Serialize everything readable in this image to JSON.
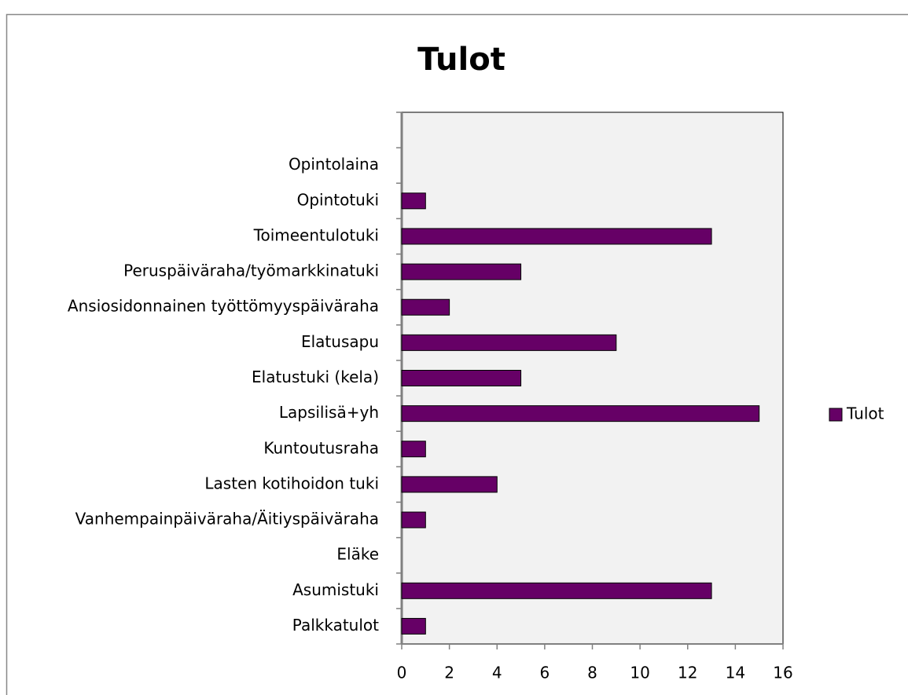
{
  "chart_data": {
    "type": "bar",
    "orientation": "horizontal",
    "title": "Tulot",
    "categories": [
      "Palkkatulot",
      "Asumistuki",
      "Eläke",
      "Vanhempainpäiväraha/Äitiyspäiväraha",
      "Lasten kotihoidon tuki",
      "Kuntoutusraha",
      "Lapsilisä+yh",
      "Elatustuki (kela)",
      "Elatusapu",
      "Ansiosidonnainen työttömyyspäiväraha",
      "Peruspäiväraha/työmarkkinatuki",
      "Toimeentulotuki",
      "Opintotuki",
      "Opintolaina",
      null
    ],
    "series": [
      {
        "name": "Tulot",
        "color": "#660066",
        "values": [
          1,
          13,
          0,
          1,
          4,
          1,
          15,
          5,
          9,
          2,
          5,
          13,
          1,
          0,
          null
        ]
      }
    ],
    "xlim": [
      0,
      16
    ],
    "xticks": [
      0,
      2,
      4,
      6,
      8,
      10,
      12,
      14,
      16
    ],
    "legend": "right"
  }
}
